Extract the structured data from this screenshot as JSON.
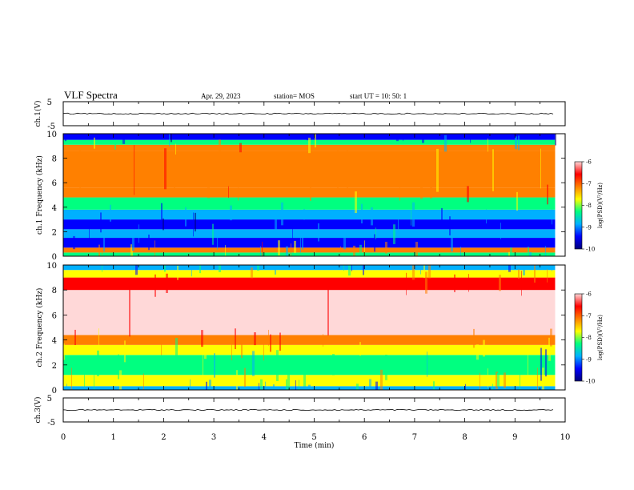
{
  "header": {
    "title": "VLF Spectra",
    "date": "Apr. 29, 2023",
    "station": "station= MOS",
    "start": "start  UT =   10: 50: 1"
  },
  "colors": {
    "colormap": [
      "#00007a",
      "#0000ff",
      "#00b0ff",
      "#00ff80",
      "#ffff00",
      "#ff8000",
      "#ff0000",
      "#ffd8d8",
      "#ffffff"
    ],
    "trace": "#000000"
  },
  "chart_data": [
    {
      "type": "line",
      "panel": "ch.1 voltage",
      "ylabel": "ch.1(V)",
      "ylim": [
        -5,
        5
      ],
      "yticks": [
        "5",
        "-5"
      ],
      "xlim": [
        0,
        10
      ],
      "series": [
        {
          "values": [
            0,
            0
          ],
          "x": [
            0,
            9.8
          ]
        }
      ]
    },
    {
      "type": "heatmap",
      "panel": "ch.1 spectrogram",
      "ylabel": "ch.1 Frequency (kHz)",
      "xlim": [
        0,
        10
      ],
      "ylim": [
        0,
        10
      ],
      "yticks": [
        "0",
        "2",
        "4",
        "6",
        "8",
        "10"
      ],
      "data_end_min": 9.8,
      "colorbar": {
        "label": "log(PSD)(V²/Hz)",
        "range": [
          -10,
          -6
        ],
        "ticks": [
          "-6",
          "-7",
          "-8",
          "-9",
          "-10"
        ]
      },
      "bands_khz": [
        {
          "from": 0.0,
          "to": 0.3,
          "level": -8.2
        },
        {
          "from": 0.3,
          "to": 0.7,
          "level": -7.3
        },
        {
          "from": 0.7,
          "to": 1.5,
          "level": -9.4
        },
        {
          "from": 1.5,
          "to": 2.2,
          "level": -9.0
        },
        {
          "from": 2.2,
          "to": 3.0,
          "level": -9.2
        },
        {
          "from": 3.0,
          "to": 3.8,
          "level": -8.9
        },
        {
          "from": 3.8,
          "to": 4.8,
          "level": -8.0
        },
        {
          "from": 4.8,
          "to": 5.6,
          "level": -7.2
        },
        {
          "from": 5.6,
          "to": 8.6,
          "level": -6.8
        },
        {
          "from": 8.6,
          "to": 9.1,
          "level": -7.1
        },
        {
          "from": 9.1,
          "to": 9.5,
          "level": -8.3
        },
        {
          "from": 9.5,
          "to": 10.0,
          "level": -9.6
        }
      ]
    },
    {
      "type": "heatmap",
      "panel": "ch.2 spectrogram",
      "ylabel": "ch.2 Frequency (kHz)",
      "xlim": [
        0,
        10
      ],
      "ylim": [
        0,
        10
      ],
      "yticks": [
        "0",
        "2",
        "4",
        "6",
        "8",
        "10"
      ],
      "data_end_min": 9.8,
      "colorbar": {
        "label": "log(PSD)(V²/Hz)",
        "range": [
          -10,
          -6
        ],
        "ticks": [
          "-6",
          "-7",
          "-8",
          "-9",
          "-10"
        ]
      },
      "bands_khz": [
        {
          "from": 0.0,
          "to": 0.3,
          "level": -8.6
        },
        {
          "from": 0.3,
          "to": 1.2,
          "level": -7.6
        },
        {
          "from": 1.2,
          "to": 2.8,
          "level": -8.4
        },
        {
          "from": 2.8,
          "to": 3.6,
          "level": -7.6
        },
        {
          "from": 3.6,
          "to": 4.4,
          "level": -6.8
        },
        {
          "from": 4.4,
          "to": 8.0,
          "level": -5.8
        },
        {
          "from": 8.0,
          "to": 9.0,
          "level": -6.6
        },
        {
          "from": 9.0,
          "to": 9.6,
          "level": -7.5
        },
        {
          "from": 9.6,
          "to": 10.0,
          "level": -8.6
        }
      ]
    },
    {
      "type": "line",
      "panel": "ch.3 voltage",
      "ylabel": "ch.3(V)",
      "ylim": [
        -5,
        5
      ],
      "yticks": [
        "5",
        "-5"
      ],
      "xlim": [
        0,
        10
      ],
      "xlabel": "Time  (min)",
      "xticks": [
        "0",
        "1",
        "2",
        "3",
        "4",
        "5",
        "6",
        "7",
        "8",
        "9",
        "10"
      ],
      "series": [
        {
          "values": [
            0,
            0
          ],
          "x": [
            0,
            9.8
          ]
        }
      ]
    }
  ]
}
